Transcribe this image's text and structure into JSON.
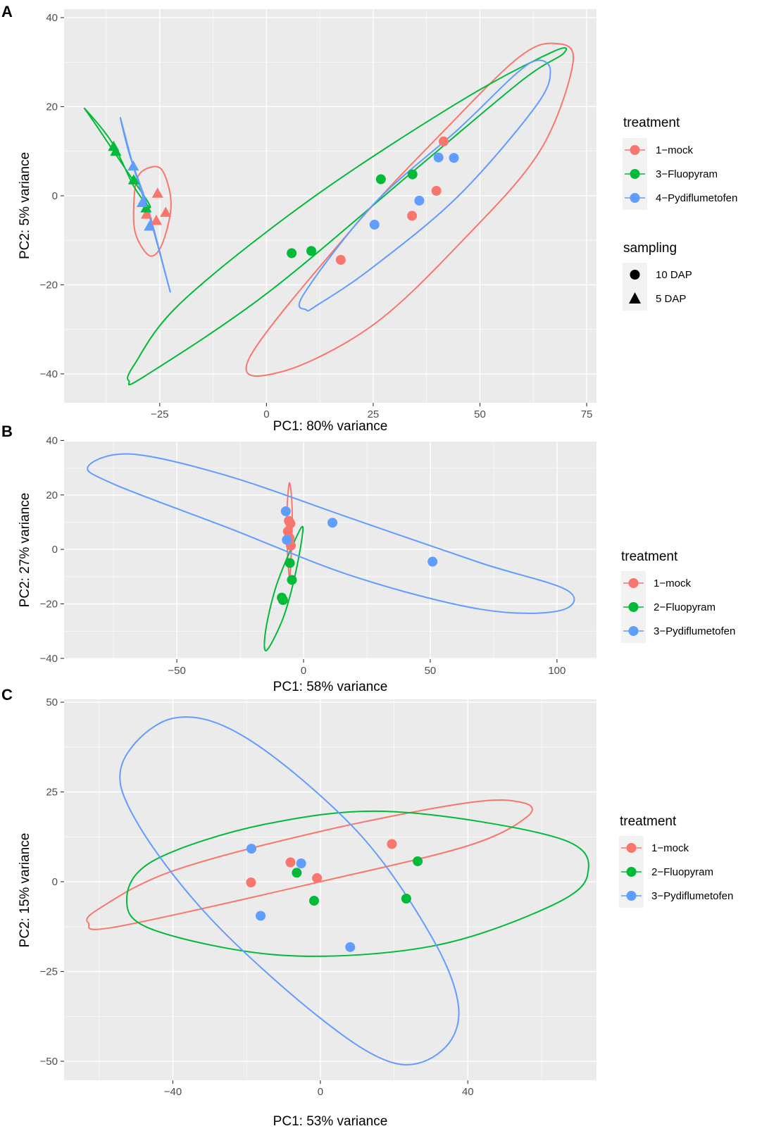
{
  "colors": {
    "red": "#F8766D",
    "green": "#00BA38",
    "blue": "#619CFF",
    "panel_bg": "#EBEBEB"
  },
  "chart_data": [
    {
      "label": "A",
      "type": "scatter",
      "xlabel": "PC1: 80% variance",
      "ylabel": "PC2: 5% variance",
      "xlim": [
        -47.4,
        77.3
      ],
      "ylim": [
        -46.5,
        41.9
      ],
      "xticks": [
        -25,
        0,
        25,
        50,
        75
      ],
      "yticks": [
        -40,
        -20,
        0,
        20,
        40
      ],
      "xtick_labels": [
        "−25",
        "0",
        "25",
        "50",
        "75"
      ],
      "ytick_labels": [
        "−40",
        "−20",
        "0",
        "20",
        "40"
      ],
      "legend": {
        "color_title": "treatment",
        "color_items": [
          {
            "label": "1−mock",
            "color": "#F8766D"
          },
          {
            "label": "3−Fluopyram",
            "color": "#00BA38"
          },
          {
            "label": "4−Pydiflumetofen",
            "color": "#619CFF"
          }
        ],
        "shape_title": "sampling",
        "shape_items": [
          {
            "label": "10 DAP",
            "shape": "circle"
          },
          {
            "label": "5 DAP",
            "shape": "triangle"
          }
        ]
      },
      "series": [
        {
          "name": "1−mock",
          "color": "#F8766D",
          "points": [
            {
              "x": 41.5,
              "y": 12.2,
              "shape": "circle"
            },
            {
              "x": 39.8,
              "y": 1.1,
              "shape": "circle"
            },
            {
              "x": 34.1,
              "y": -4.5,
              "shape": "circle"
            },
            {
              "x": 17.4,
              "y": -14.4,
              "shape": "circle"
            },
            {
              "x": -25.5,
              "y": 0.5,
              "shape": "triangle"
            },
            {
              "x": -23.6,
              "y": -3.8,
              "shape": "triangle"
            },
            {
              "x": -28.1,
              "y": -4.2,
              "shape": "triangle"
            },
            {
              "x": -25.8,
              "y": -5.6,
              "shape": "triangle"
            }
          ]
        },
        {
          "name": "3−Fluopyram",
          "color": "#00BA38",
          "points": [
            {
              "x": 34.2,
              "y": 4.8,
              "shape": "circle"
            },
            {
              "x": 26.8,
              "y": 3.7,
              "shape": "circle"
            },
            {
              "x": 10.5,
              "y": -12.4,
              "shape": "circle"
            },
            {
              "x": 5.9,
              "y": -12.9,
              "shape": "circle"
            },
            {
              "x": -35.8,
              "y": 11.0,
              "shape": "triangle"
            },
            {
              "x": -35.3,
              "y": 9.9,
              "shape": "triangle"
            },
            {
              "x": -31.1,
              "y": 3.5,
              "shape": "triangle"
            },
            {
              "x": -28.2,
              "y": -2.8,
              "shape": "triangle"
            }
          ]
        },
        {
          "name": "4−Pydiflumetofen",
          "color": "#619CFF",
          "points": [
            {
              "x": 40.3,
              "y": 8.6,
              "shape": "circle"
            },
            {
              "x": 43.9,
              "y": 8.5,
              "shape": "circle"
            },
            {
              "x": 35.8,
              "y": -1.1,
              "shape": "circle"
            },
            {
              "x": 25.3,
              "y": -6.5,
              "shape": "circle"
            },
            {
              "x": -31.2,
              "y": 6.6,
              "shape": "triangle"
            },
            {
              "x": -29.1,
              "y": -1.6,
              "shape": "triangle"
            },
            {
              "x": -27.4,
              "y": -6.9,
              "shape": "triangle"
            }
          ]
        }
      ],
      "ellipses": [
        {
          "name": "1−mock",
          "color": "#F8766D",
          "points": [
            [
              -31.1,
              -3.0
            ],
            [
              -30.0,
              4.5
            ],
            [
              -25.5,
              6.5
            ],
            [
              -23.2,
              3.0
            ],
            [
              -22.4,
              -3.0
            ],
            [
              -24.5,
              -11.0
            ],
            [
              -27.3,
              -13.5
            ],
            [
              -30.5,
              -9.0
            ]
          ]
        },
        {
          "name": "1−mock",
          "color": "#F8766D",
          "points": [
            [
              -4.1,
              -36.6
            ],
            [
              20.0,
              -7.5
            ],
            [
              42.0,
              15.0
            ],
            [
              59.0,
              31.0
            ],
            [
              67.5,
              34.2
            ],
            [
              71.8,
              30.0
            ],
            [
              64.0,
              10.0
            ],
            [
              46.0,
              -10.0
            ],
            [
              25.0,
              -29.0
            ],
            [
              4.0,
              -39.4
            ]
          ]
        },
        {
          "name": "3−Fluopyram",
          "color": "#00BA38",
          "points": [
            [
              -42.5,
              19.5
            ],
            [
              -36.2,
              12.0
            ],
            [
              -31.0,
              2.0
            ],
            [
              -27.5,
              -2.5
            ],
            [
              -28.0,
              -1.0
            ],
            [
              -33.0,
              6.0
            ],
            [
              -40.0,
              16.0
            ]
          ]
        },
        {
          "name": "3−Fluopyram",
          "color": "#00BA38",
          "points": [
            [
              -32.2,
              -41.6
            ],
            [
              -28.5,
              -40.5
            ],
            [
              0.0,
              -22.0
            ],
            [
              35.0,
              6.0
            ],
            [
              60.0,
              26.0
            ],
            [
              69.4,
              31.8
            ],
            [
              67.0,
              32.3
            ],
            [
              45.0,
              21.0
            ],
            [
              10.0,
              -1.0
            ],
            [
              -20.0,
              -24.0
            ],
            [
              -31.0,
              -38.0
            ]
          ]
        },
        {
          "name": "4−Pydiflumetofen",
          "color": "#619CFF",
          "points": [
            [
              -34.2,
              17.5
            ],
            [
              -31.0,
              6.0
            ],
            [
              -27.0,
              -6.0
            ],
            [
              -22.7,
              -21.0
            ],
            [
              -23.8,
              -17.0
            ],
            [
              -28.0,
              -2.0
            ],
            [
              -32.0,
              9.0
            ]
          ]
        },
        {
          "name": "4−Pydiflumetofen",
          "color": "#619CFF",
          "points": [
            [
              9.3,
              -25.6
            ],
            [
              8.8,
              -22.0
            ],
            [
              25.0,
              -2.0
            ],
            [
              45.0,
              15.0
            ],
            [
              58.0,
              27.0
            ],
            [
              63.5,
              30.4
            ],
            [
              66.5,
              28.0
            ],
            [
              63.0,
              20.0
            ],
            [
              45.0,
              0.0
            ],
            [
              25.0,
              -16.0
            ],
            [
              12.0,
              -24.5
            ]
          ]
        }
      ]
    },
    {
      "label": "B",
      "type": "scatter",
      "xlabel": "PC1: 58% variance",
      "ylabel": "PC2: 27% variance",
      "xlim": [
        -94.5,
        115.6
      ],
      "ylim": [
        -40.3,
        39.6
      ],
      "xticks": [
        -50,
        0,
        50,
        100
      ],
      "yticks": [
        -40,
        -20,
        0,
        20,
        40
      ],
      "xtick_labels": [
        "−50",
        "0",
        "50",
        "100"
      ],
      "ytick_labels": [
        "−40",
        "−20",
        "0",
        "20",
        "40"
      ],
      "legend": {
        "color_title": "treatment",
        "color_items": [
          {
            "label": "1−mock",
            "color": "#F8766D"
          },
          {
            "label": "2−Fluopyram",
            "color": "#00BA38"
          },
          {
            "label": "3−Pydiflumetofen",
            "color": "#619CFF"
          }
        ]
      },
      "series": [
        {
          "name": "1−mock",
          "color": "#F8766D",
          "points": [
            {
              "x": -5.8,
              "y": 10.5
            },
            {
              "x": -5.2,
              "y": 9.5
            },
            {
              "x": -6.2,
              "y": 6.6
            },
            {
              "x": -5.5,
              "y": 4.2
            },
            {
              "x": -5.0,
              "y": 1.4
            }
          ]
        },
        {
          "name": "2−Fluopyram",
          "color": "#00BA38",
          "points": [
            {
              "x": -5.4,
              "y": -5.0
            },
            {
              "x": -4.6,
              "y": -11.2
            },
            {
              "x": -8.6,
              "y": -17.7
            },
            {
              "x": -8.1,
              "y": -18.6
            }
          ]
        },
        {
          "name": "3−Pydiflumetofen",
          "color": "#619CFF",
          "points": [
            {
              "x": -7.0,
              "y": 14.0
            },
            {
              "x": -6.6,
              "y": 3.5
            },
            {
              "x": 11.4,
              "y": 9.8
            },
            {
              "x": 50.9,
              "y": -4.5
            }
          ]
        }
      ],
      "ellipses": [
        {
          "name": "1−mock",
          "color": "#F8766D",
          "points": [
            [
              -5.5,
              24.5
            ],
            [
              -4.5,
              15.0
            ],
            [
              -4.8,
              0.0
            ],
            [
              -5.5,
              -10.2
            ],
            [
              -6.4,
              0.0
            ],
            [
              -6.5,
              15.0
            ]
          ]
        },
        {
          "name": "2−Fluopyram",
          "color": "#00BA38",
          "points": [
            [
              -0.3,
              8.2
            ],
            [
              -3.0,
              -8.0
            ],
            [
              -8.0,
              -25.0
            ],
            [
              -14.6,
              -37.1
            ],
            [
              -15.0,
              -30.0
            ],
            [
              -11.0,
              -14.0
            ],
            [
              -5.0,
              0.0
            ]
          ]
        },
        {
          "name": "3−Pydiflumetofen",
          "color": "#619CFF",
          "points": [
            [
              -85.0,
              30.5
            ],
            [
              -68.0,
              35.0
            ],
            [
              -30.0,
              27.0
            ],
            [
              20.0,
              11.0
            ],
            [
              70.0,
              -5.0
            ],
            [
              104.0,
              -15.0
            ],
            [
              101.0,
              -22.5
            ],
            [
              70.0,
              -22.0
            ],
            [
              20.0,
              -10.0
            ],
            [
              -30.0,
              8.0
            ],
            [
              -75.0,
              24.0
            ]
          ]
        }
      ]
    },
    {
      "label": "C",
      "type": "scatter",
      "xlabel": "PC1: 53% variance",
      "ylabel": "PC2: 15% variance",
      "xlim": [
        -69.5,
        74.9
      ],
      "ylim": [
        -55.3,
        50.8
      ],
      "xticks": [
        -40,
        0,
        40
      ],
      "yticks": [
        -50,
        -25,
        0,
        25,
        50
      ],
      "xtick_labels": [
        "−40",
        "0",
        "40"
      ],
      "ytick_labels": [
        "−50",
        "−25",
        "0",
        "25",
        "50"
      ],
      "legend": {
        "color_title": "treatment",
        "color_items": [
          {
            "label": "1−mock",
            "color": "#F8766D"
          },
          {
            "label": "2−Fluopyram",
            "color": "#00BA38"
          },
          {
            "label": "3−Pydiflumetofen",
            "color": "#619CFF"
          }
        ]
      },
      "series": [
        {
          "name": "1−mock",
          "color": "#F8766D",
          "points": [
            {
              "x": 19.4,
              "y": 10.5
            },
            {
              "x": -8.1,
              "y": 5.4
            },
            {
              "x": -0.9,
              "y": 1.0
            },
            {
              "x": -18.8,
              "y": -0.2
            }
          ]
        },
        {
          "name": "2−Fluopyram",
          "color": "#00BA38",
          "points": [
            {
              "x": 26.4,
              "y": 5.7
            },
            {
              "x": -6.4,
              "y": 2.5
            },
            {
              "x": 23.3,
              "y": -4.7
            },
            {
              "x": -1.7,
              "y": -5.3
            }
          ]
        },
        {
          "name": "3−Pydiflumetofen",
          "color": "#619CFF",
          "points": [
            {
              "x": -18.7,
              "y": 9.2
            },
            {
              "x": -5.2,
              "y": 5.1
            },
            {
              "x": -16.2,
              "y": -9.5
            },
            {
              "x": 8.1,
              "y": -18.2
            }
          ]
        }
      ],
      "ellipses": [
        {
          "name": "1−mock",
          "color": "#F8766D",
          "points": [
            [
              -62.9,
              -11.5
            ],
            [
              -55.0,
              -12.5
            ],
            [
              0.0,
              0.0
            ],
            [
              40.0,
              10.0
            ],
            [
              56.0,
              18.0
            ],
            [
              55.0,
              22.0
            ],
            [
              40.0,
              22.0
            ],
            [
              0.0,
              14.0
            ],
            [
              -40.0,
              3.0
            ],
            [
              -60.0,
              -7.5
            ]
          ]
        },
        {
          "name": "2−Fluopyram",
          "color": "#00BA38",
          "points": [
            [
              -52.5,
              -5.0
            ],
            [
              -45.0,
              -13.5
            ],
            [
              -10.0,
              -20.5
            ],
            [
              30.0,
              -18.0
            ],
            [
              62.0,
              -7.0
            ],
            [
              72.5,
              2.0
            ],
            [
              65.0,
              12.0
            ],
            [
              20.0,
              19.5
            ],
            [
              -15.0,
              16.0
            ],
            [
              -45.0,
              6.0
            ]
          ]
        },
        {
          "name": "3−Pydiflumetofen",
          "color": "#619CFF",
          "points": [
            [
              -53.7,
              33.0
            ],
            [
              -40.0,
              45.5
            ],
            [
              -20.0,
              40.0
            ],
            [
              10.0,
              14.0
            ],
            [
              30.0,
              -15.0
            ],
            [
              37.5,
              -35.0
            ],
            [
              33.0,
              -47.0
            ],
            [
              20.0,
              -50.5
            ],
            [
              0.0,
              -38.0
            ],
            [
              -30.0,
              -10.0
            ],
            [
              -50.0,
              17.0
            ]
          ]
        }
      ]
    }
  ]
}
